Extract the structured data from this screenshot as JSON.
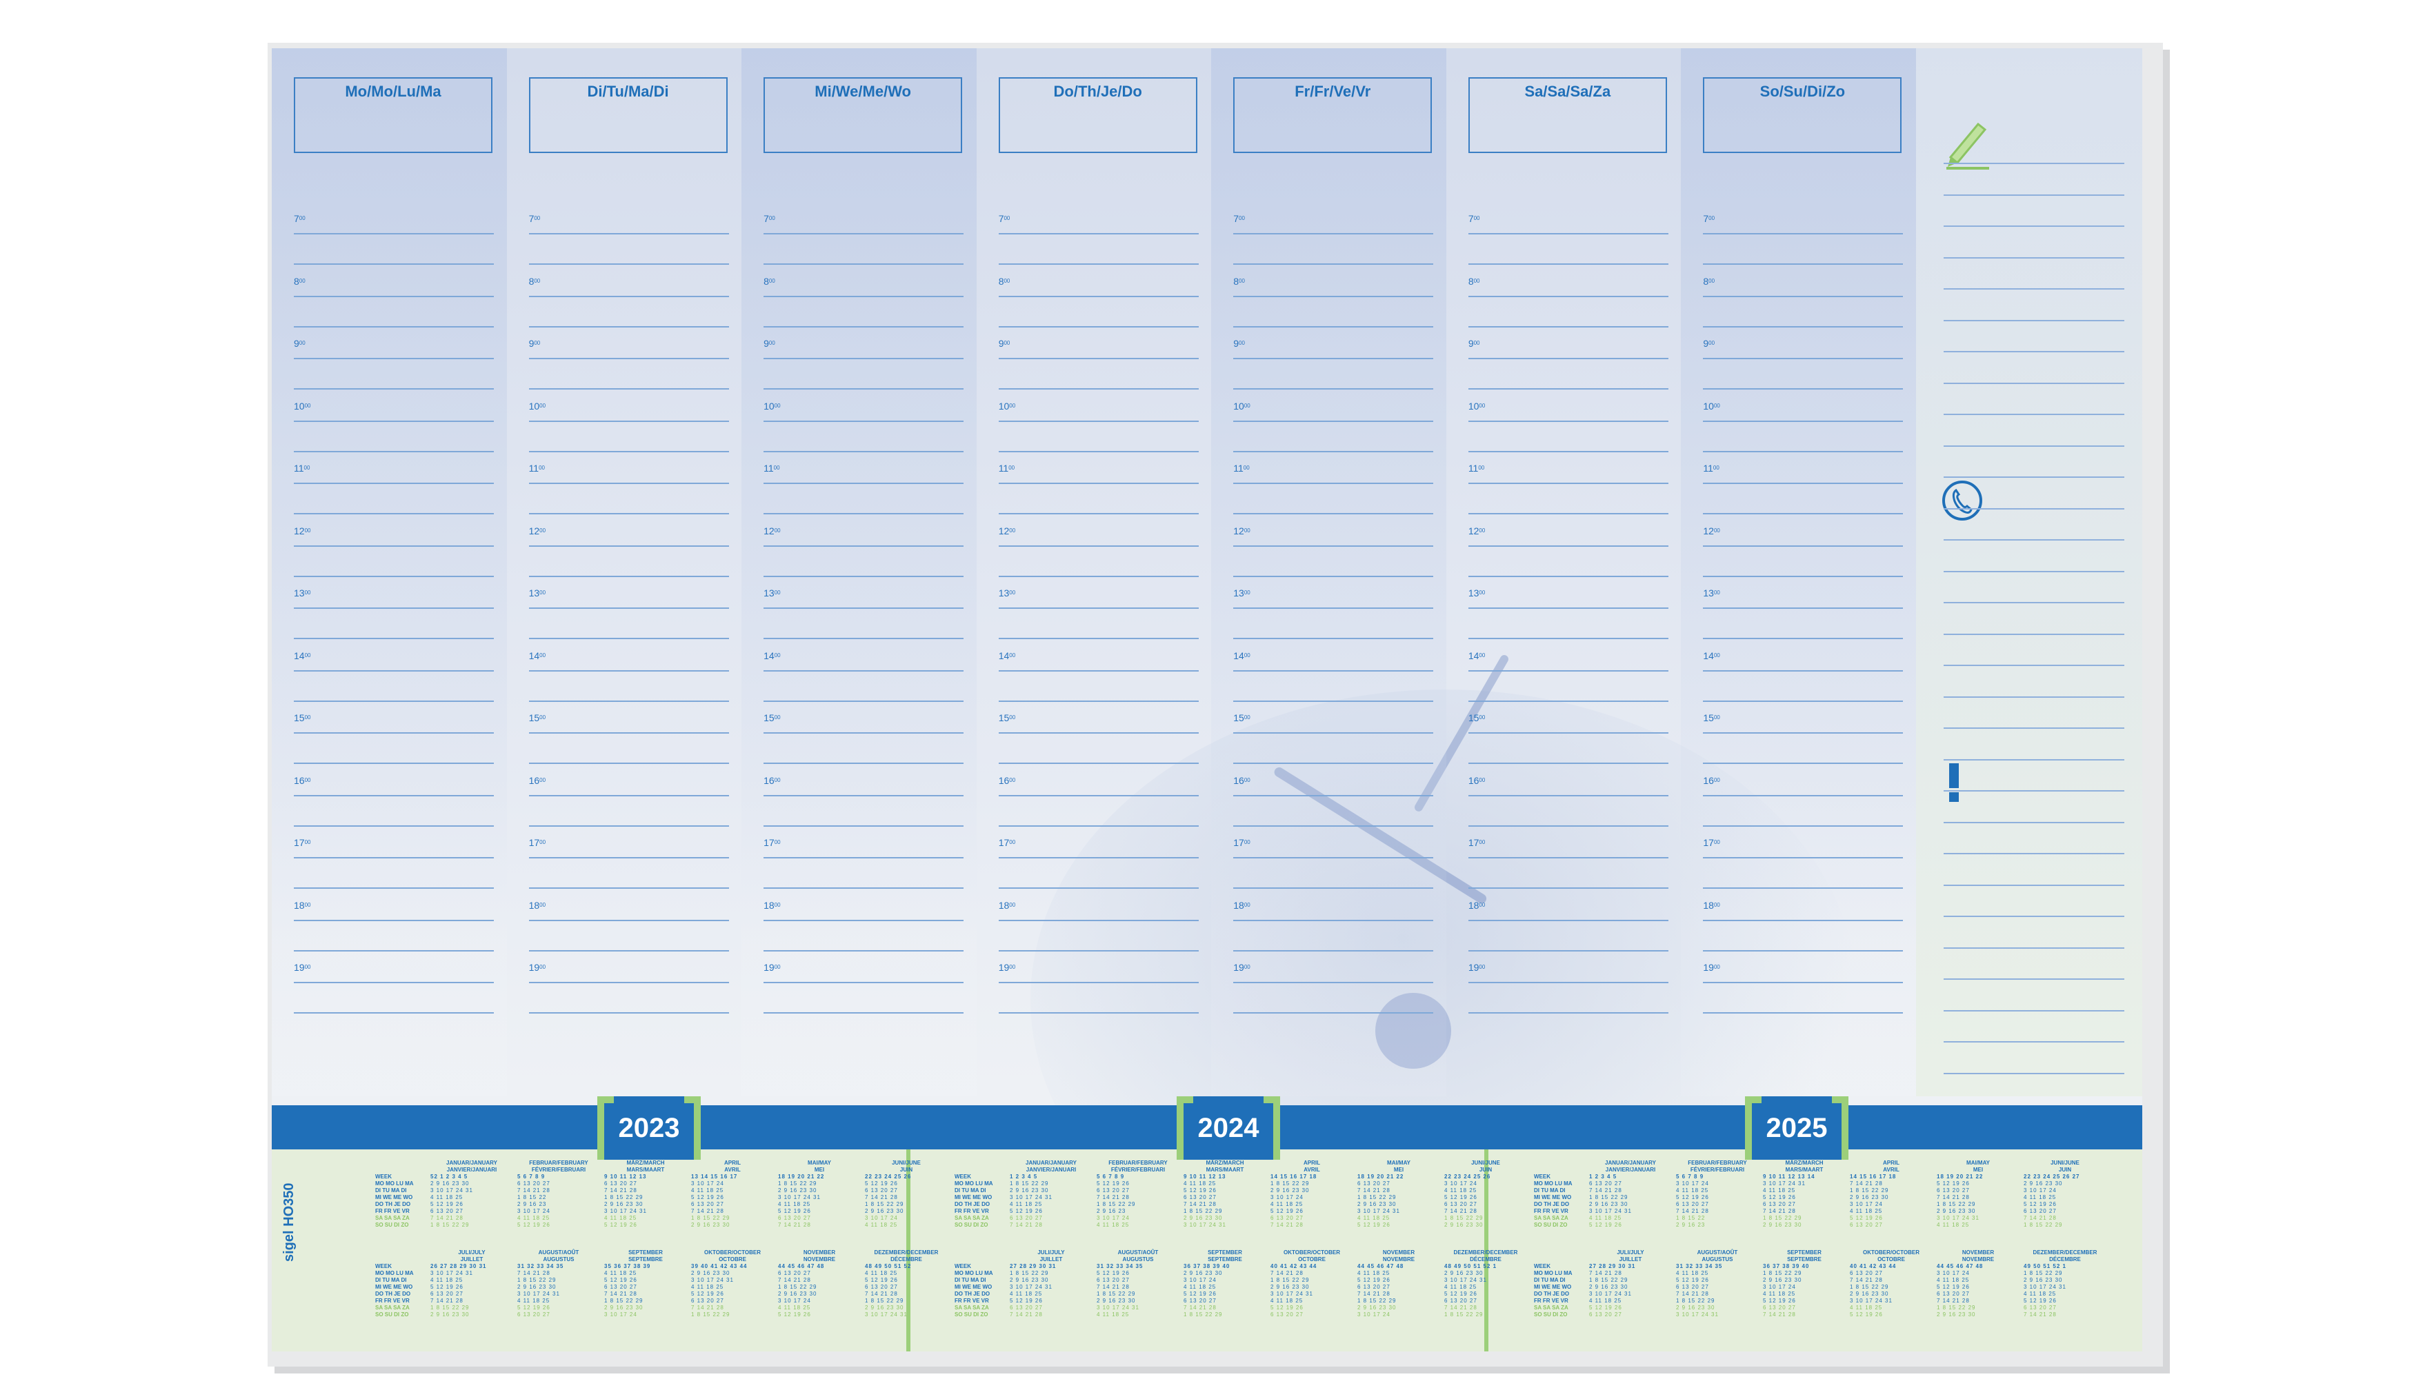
{
  "days": [
    {
      "label": "Mo/Mo/Lu/Ma"
    },
    {
      "label": "Di/Tu/Ma/Di"
    },
    {
      "label": "Mi/We/Me/Wo"
    },
    {
      "label": "Do/Th/Je/Do"
    },
    {
      "label": "Fr/Fr/Ve/Vr"
    },
    {
      "label": "Sa/Sa/Sa/Za"
    },
    {
      "label": "So/Su/Di/Zo"
    }
  ],
  "hours": [
    "7",
    "8",
    "9",
    "10",
    "11",
    "12",
    "13",
    "14",
    "15",
    "16",
    "17",
    "18",
    "19"
  ],
  "hour_suffix": "00",
  "notes": {
    "icons": [
      "pencil-icon",
      "phone-icon",
      "exclamation-icon"
    ]
  },
  "brand": "sigel HO350",
  "years": [
    {
      "year": "2023",
      "week_label": "WEEK",
      "weekday_rows": [
        "MO MO LU MA",
        "DI TU MA DI",
        "MI WE ME WO",
        "DO TH JE DO",
        "FR FR VE VR",
        "SA SA SA ZA",
        "SO SU DI ZO"
      ],
      "months_top": [
        {
          "name": "JANUAR/JANUARY",
          "name2": "JANVIER/JANUARI",
          "weeks": "52 1 2 3 4 5",
          "rows": [
            "2 9 16 23 30",
            "3 10 17 24 31",
            "4 11 18 25",
            "5 12 19 26",
            "6 13 20 27",
            "7 14 21 28",
            "1 8 15 22 29"
          ]
        },
        {
          "name": "FEBRUAR/FEBRUARY",
          "name2": "FÉVRIER/FEBRUARI",
          "weeks": "5 6 7 8 9",
          "rows": [
            "6 13 20 27",
            "7 14 21 28",
            "1 8 15 22",
            "2 9 16 23",
            "3 10 17 24",
            "4 11 18 25",
            "5 12 19 26"
          ]
        },
        {
          "name": "MÄRZ/MARCH",
          "name2": "MARS/MAART",
          "weeks": "9 10 11 12 13",
          "rows": [
            "6 13 20 27",
            "7 14 21 28",
            "1 8 15 22 29",
            "2 9 16 23 30",
            "3 10 17 24 31",
            "4 11 18 25",
            "5 12 19 26"
          ]
        },
        {
          "name": "APRIL",
          "name2": "AVRIL",
          "weeks": "13 14 15 16 17",
          "rows": [
            "3 10 17 24",
            "4 11 18 25",
            "5 12 19 26",
            "6 13 20 27",
            "7 14 21 28",
            "1 8 15 22 29",
            "2 9 16 23 30"
          ]
        },
        {
          "name": "MAI/MAY",
          "name2": "MEI",
          "weeks": "18 19 20 21 22",
          "rows": [
            "1 8 15 22 29",
            "2 9 16 23 30",
            "3 10 17 24 31",
            "4 11 18 25",
            "5 12 19 26",
            "6 13 20 27",
            "7 14 21 28"
          ]
        },
        {
          "name": "JUNI/JUNE",
          "name2": "JUIN",
          "weeks": "22 23 24 25 26",
          "rows": [
            "5 12 19 26",
            "6 13 20 27",
            "7 14 21 28",
            "1 8 15 22 29",
            "2 9 16 23 30",
            "3 10 17 24",
            "4 11 18 25"
          ]
        }
      ],
      "months_bottom": [
        {
          "name": "JULI/JULY",
          "name2": "JUILLET",
          "weeks": "26 27 28 29 30 31",
          "rows": [
            "3 10 17 24 31",
            "4 11 18 25",
            "5 12 19 26",
            "6 13 20 27",
            "7 14 21 28",
            "1 8 15 22 29",
            "2 9 16 23 30"
          ]
        },
        {
          "name": "AUGUST/AOÛT",
          "name2": "AUGUSTUS",
          "weeks": "31 32 33 34 35",
          "rows": [
            "7 14 21 28",
            "1 8 15 22 29",
            "2 9 16 23 30",
            "3 10 17 24 31",
            "4 11 18 25",
            "5 12 19 26",
            "6 13 20 27"
          ]
        },
        {
          "name": "SEPTEMBER",
          "name2": "SEPTEMBRE",
          "weeks": "35 36 37 38 39",
          "rows": [
            "4 11 18 25",
            "5 12 19 26",
            "6 13 20 27",
            "7 14 21 28",
            "1 8 15 22 29",
            "2 9 16 23 30",
            "3 10 17 24"
          ]
        },
        {
          "name": "OKTOBER/OCTOBER",
          "name2": "OCTOBRE",
          "weeks": "39 40 41 42 43 44",
          "rows": [
            "2 9 16 23 30",
            "3 10 17 24 31",
            "4 11 18 25",
            "5 12 19 26",
            "6 13 20 27",
            "7 14 21 28",
            "1 8 15 22 29"
          ]
        },
        {
          "name": "NOVEMBER",
          "name2": "NOVEMBRE",
          "weeks": "44 45 46 47 48",
          "rows": [
            "6 13 20 27",
            "7 14 21 28",
            "1 8 15 22 29",
            "2 9 16 23 30",
            "3 10 17 24",
            "4 11 18 25",
            "5 12 19 26"
          ]
        },
        {
          "name": "DEZEMBER/DECEMBER",
          "name2": "DÉCEMBRE",
          "weeks": "48 49 50 51 52",
          "rows": [
            "4 11 18 25",
            "5 12 19 26",
            "6 13 20 27",
            "7 14 21 28",
            "1 8 15 22 29",
            "2 9 16 23 30",
            "3 10 17 24 31"
          ]
        }
      ]
    },
    {
      "year": "2024",
      "week_label": "WEEK",
      "weekday_rows": [
        "MO MO LU MA",
        "DI TU MA DI",
        "MI WE ME WO",
        "DO TH JE DO",
        "FR FR VE VR",
        "SA SA SA ZA",
        "SO SU DI ZO"
      ],
      "months_top": [
        {
          "name": "JANUAR/JANUARY",
          "name2": "JANVIER/JANUARI",
          "weeks": "1 2 3 4 5",
          "rows": [
            "1 8 15 22 29",
            "2 9 16 23 30",
            "3 10 17 24 31",
            "4 11 18 25",
            "5 12 19 26",
            "6 13 20 27",
            "7 14 21 28"
          ]
        },
        {
          "name": "FEBRUAR/FEBRUARY",
          "name2": "FÉVRIER/FEBRUARI",
          "weeks": "5 6 7 8 9",
          "rows": [
            "5 12 19 26",
            "6 13 20 27",
            "7 14 21 28",
            "1 8 15 22 29",
            "2 9 16 23",
            "3 10 17 24",
            "4 11 18 25"
          ]
        },
        {
          "name": "MÄRZ/MARCH",
          "name2": "MARS/MAART",
          "weeks": "9 10 11 12 13",
          "rows": [
            "4 11 18 25",
            "5 12 19 26",
            "6 13 20 27",
            "7 14 21 28",
            "1 8 15 22 29",
            "2 9 16 23 30",
            "3 10 17 24 31"
          ]
        },
        {
          "name": "APRIL",
          "name2": "AVRIL",
          "weeks": "14 15 16 17 18",
          "rows": [
            "1 8 15 22 29",
            "2 9 16 23 30",
            "3 10 17 24",
            "4 11 18 25",
            "5 12 19 26",
            "6 13 20 27",
            "7 14 21 28"
          ]
        },
        {
          "name": "MAI/MAY",
          "name2": "MEI",
          "weeks": "18 19 20 21 22",
          "rows": [
            "6 13 20 27",
            "7 14 21 28",
            "1 8 15 22 29",
            "2 9 16 23 30",
            "3 10 17 24 31",
            "4 11 18 25",
            "5 12 19 26"
          ]
        },
        {
          "name": "JUNI/JUNE",
          "name2": "JUIN",
          "weeks": "22 23 24 25 26",
          "rows": [
            "3 10 17 24",
            "4 11 18 25",
            "5 12 19 26",
            "6 13 20 27",
            "7 14 21 28",
            "1 8 15 22 29",
            "2 9 16 23 30"
          ]
        }
      ],
      "months_bottom": [
        {
          "name": "JULI/JULY",
          "name2": "JUILLET",
          "weeks": "27 28 29 30 31",
          "rows": [
            "1 8 15 22 29",
            "2 9 16 23 30",
            "3 10 17 24 31",
            "4 11 18 25",
            "5 12 19 26",
            "6 13 20 27",
            "7 14 21 28"
          ]
        },
        {
          "name": "AUGUST/AOÛT",
          "name2": "AUGUSTUS",
          "weeks": "31 32 33 34 35",
          "rows": [
            "5 12 19 26",
            "6 13 20 27",
            "7 14 21 28",
            "1 8 15 22 29",
            "2 9 16 23 30",
            "3 10 17 24 31",
            "4 11 18 25"
          ]
        },
        {
          "name": "SEPTEMBER",
          "name2": "SEPTEMBRE",
          "weeks": "36 37 38 39 40",
          "rows": [
            "2 9 16 23 30",
            "3 10 17 24",
            "4 11 18 25",
            "5 12 19 26",
            "6 13 20 27",
            "7 14 21 28",
            "1 8 15 22 29"
          ]
        },
        {
          "name": "OKTOBER/OCTOBER",
          "name2": "OCTOBRE",
          "weeks": "40 41 42 43 44",
          "rows": [
            "7 14 21 28",
            "1 8 15 22 29",
            "2 9 16 23 30",
            "3 10 17 24 31",
            "4 11 18 25",
            "5 12 19 26",
            "6 13 20 27"
          ]
        },
        {
          "name": "NOVEMBER",
          "name2": "NOVEMBRE",
          "weeks": "44 45 46 47 48",
          "rows": [
            "4 11 18 25",
            "5 12 19 26",
            "6 13 20 27",
            "7 14 21 28",
            "1 8 15 22 29",
            "2 9 16 23 30",
            "3 10 17 24"
          ]
        },
        {
          "name": "DEZEMBER/DECEMBER",
          "name2": "DÉCEMBRE",
          "weeks": "48 49 50 51 52 1",
          "rows": [
            "2 9 16 23 30",
            "3 10 17 24 31",
            "4 11 18 25",
            "5 12 19 26",
            "6 13 20 27",
            "7 14 21 28",
            "1 8 15 22 29"
          ]
        }
      ]
    },
    {
      "year": "2025",
      "week_label": "WEEK",
      "weekday_rows": [
        "MO MO LU MA",
        "DI TU MA DI",
        "MI WE ME WO",
        "DO TH JE DO",
        "FR FR VE VR",
        "SA SA SA ZA",
        "SO SU DI ZO"
      ],
      "months_top": [
        {
          "name": "JANUAR/JANUARY",
          "name2": "JANVIER/JANUARI",
          "weeks": "1 2 3 4 5",
          "rows": [
            "6 13 20 27",
            "7 14 21 28",
            "1 8 15 22 29",
            "2 9 16 23 30",
            "3 10 17 24 31",
            "4 11 18 25",
            "5 12 19 26"
          ]
        },
        {
          "name": "FEBRUAR/FEBRUARY",
          "name2": "FÉVRIER/FEBRUARI",
          "weeks": "5 6 7 8 9",
          "rows": [
            "3 10 17 24",
            "4 11 18 25",
            "5 12 19 26",
            "6 13 20 27",
            "7 14 21 28",
            "1 8 15 22",
            "2 9 16 23"
          ]
        },
        {
          "name": "MÄRZ/MARCH",
          "name2": "MARS/MAART",
          "weeks": "9 10 11 12 13 14",
          "rows": [
            "3 10 17 24 31",
            "4 11 18 25",
            "5 12 19 26",
            "6 13 20 27",
            "7 14 21 28",
            "1 8 15 22 29",
            "2 9 16 23 30"
          ]
        },
        {
          "name": "APRIL",
          "name2": "AVRIL",
          "weeks": "14 15 16 17 18",
          "rows": [
            "7 14 21 28",
            "1 8 15 22 29",
            "2 9 16 23 30",
            "3 10 17 24",
            "4 11 18 25",
            "5 12 19 26",
            "6 13 20 27"
          ]
        },
        {
          "name": "MAI/MAY",
          "name2": "MEI",
          "weeks": "18 19 20 21 22",
          "rows": [
            "5 12 19 26",
            "6 13 20 27",
            "7 14 21 28",
            "1 8 15 22 29",
            "2 9 16 23 30",
            "3 10 17 24 31",
            "4 11 18 25"
          ]
        },
        {
          "name": "JUNI/JUNE",
          "name2": "JUIN",
          "weeks": "22 23 24 25 26 27",
          "rows": [
            "2 9 16 23 30",
            "3 10 17 24",
            "4 11 18 25",
            "5 12 19 26",
            "6 13 20 27",
            "7 14 21 28",
            "1 8 15 22 29"
          ]
        }
      ],
      "months_bottom": [
        {
          "name": "JULI/JULY",
          "name2": "JUILLET",
          "weeks": "27 28 29 30 31",
          "rows": [
            "7 14 21 28",
            "1 8 15 22 29",
            "2 9 16 23 30",
            "3 10 17 24 31",
            "4 11 18 25",
            "5 12 19 26",
            "6 13 20 27"
          ]
        },
        {
          "name": "AUGUST/AOÛT",
          "name2": "AUGUSTUS",
          "weeks": "31 32 33 34 35",
          "rows": [
            "4 11 18 25",
            "5 12 19 26",
            "6 13 20 27",
            "7 14 21 28",
            "1 8 15 22 29",
            "2 9 16 23 30",
            "3 10 17 24 31"
          ]
        },
        {
          "name": "SEPTEMBER",
          "name2": "SEPTEMBRE",
          "weeks": "36 37 38 39 40",
          "rows": [
            "1 8 15 22 29",
            "2 9 16 23 30",
            "3 10 17 24",
            "4 11 18 25",
            "5 12 19 26",
            "6 13 20 27",
            "7 14 21 28"
          ]
        },
        {
          "name": "OKTOBER/OCTOBER",
          "name2": "OCTOBRE",
          "weeks": "40 41 42 43 44",
          "rows": [
            "6 13 20 27",
            "7 14 21 28",
            "1 8 15 22 29",
            "2 9 16 23 30",
            "3 10 17 24 31",
            "4 11 18 25",
            "5 12 19 26"
          ]
        },
        {
          "name": "NOVEMBER",
          "name2": "NOVEMBRE",
          "weeks": "44 45 46 47 48",
          "rows": [
            "3 10 17 24",
            "4 11 18 25",
            "5 12 19 26",
            "6 13 20 27",
            "7 14 21 28",
            "1 8 15 22 29",
            "2 9 16 23 30"
          ]
        },
        {
          "name": "DEZEMBER/DECEMBER",
          "name2": "DÉCEMBRE",
          "weeks": "49 50 51 52 1",
          "rows": [
            "1 8 15 22 29",
            "2 9 16 23 30",
            "3 10 17 24 31",
            "4 11 18 25",
            "5 12 19 26",
            "6 13 20 27",
            "7 14 21 28"
          ]
        }
      ]
    }
  ],
  "colors": {
    "blue": "#1f6fb8",
    "green": "#9ccf7a",
    "line": "#7fa8d8"
  }
}
